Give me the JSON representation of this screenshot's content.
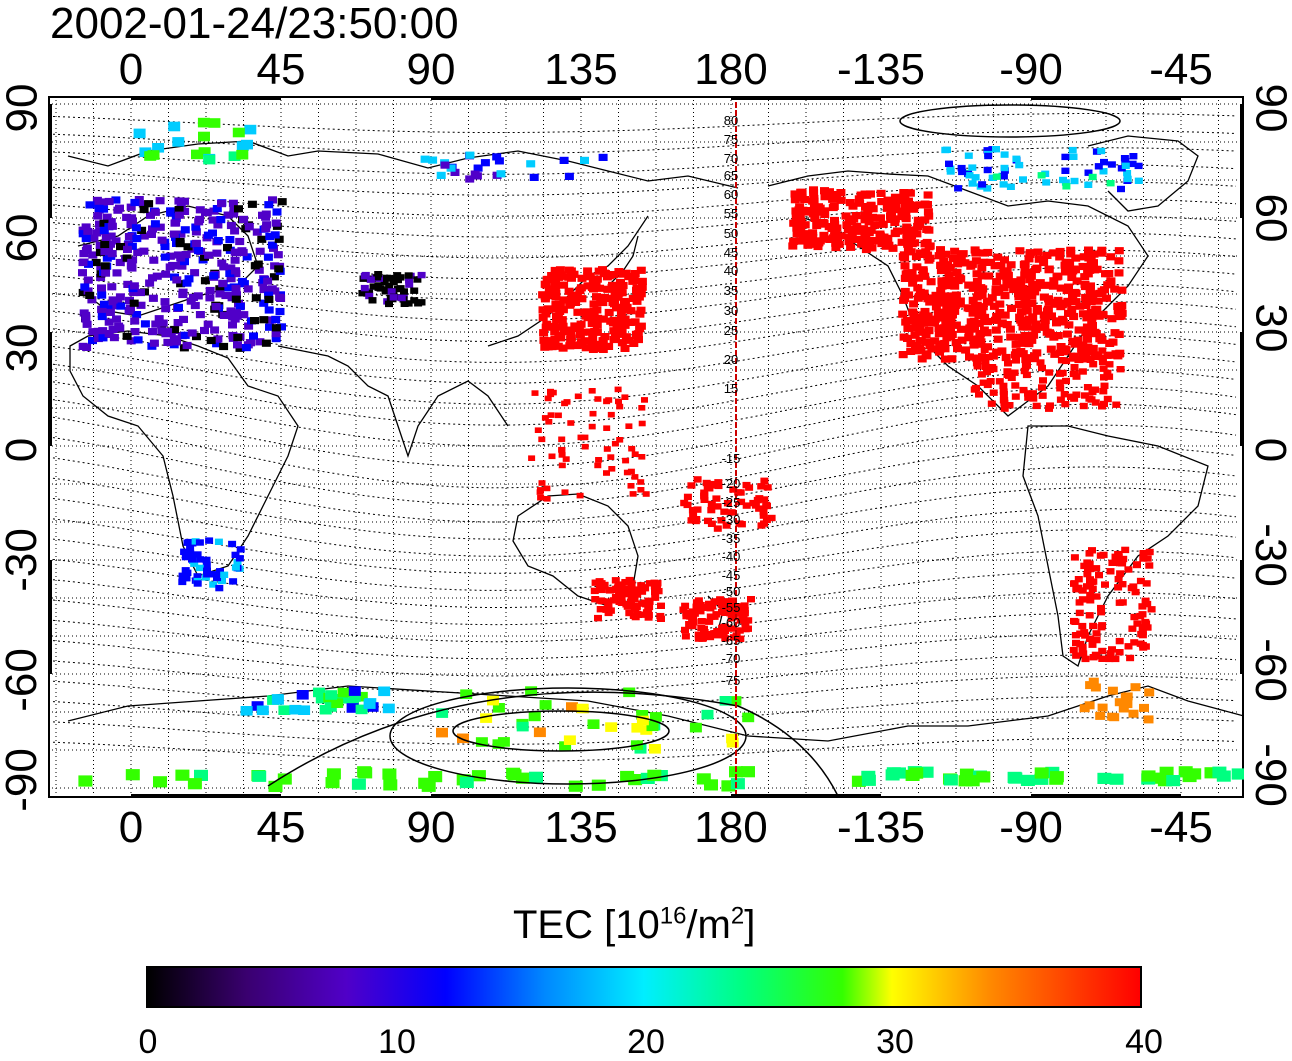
{
  "timestamp": "2002-01-24/23:50:00",
  "map": {
    "top_lon_labels": [
      "0",
      "45",
      "90",
      "135",
      "180",
      "-135",
      "-90",
      "-45"
    ],
    "bottom_lon_labels": [
      "0",
      "45",
      "90",
      "135",
      "180",
      "-135",
      "-90",
      "-45"
    ],
    "left_lat_labels": [
      "90",
      "60",
      "30",
      "0",
      "-30",
      "-60",
      "-90"
    ],
    "right_lat_labels": [
      "90",
      "60",
      "30",
      "0",
      "-30",
      "-60",
      "-90"
    ],
    "meridian_line_labels": [
      "80",
      "75",
      "70",
      "65",
      "60",
      "55",
      "50",
      "45",
      "40",
      "35",
      "30",
      "25",
      "20",
      "15",
      "-15",
      "-20",
      "-25",
      "-30",
      "-35",
      "-40",
      "-45",
      "-50",
      "-55",
      "-60",
      "-65",
      "-70",
      "-75"
    ],
    "meridian_color": "#cc0000"
  },
  "colorbar": {
    "title_main": "TEC  [10",
    "title_sup1": "16",
    "title_mid": "/m",
    "title_sup2": "2",
    "title_end": "]",
    "ticks": [
      "0",
      "10",
      "20",
      "30",
      "40"
    ],
    "range": [
      0,
      40
    ],
    "colors": [
      "#000000",
      "#5000c8",
      "#0000ff",
      "#00eeff",
      "#33ff00",
      "#ffff00",
      "#ff8800",
      "#ff0000"
    ]
  }
}
